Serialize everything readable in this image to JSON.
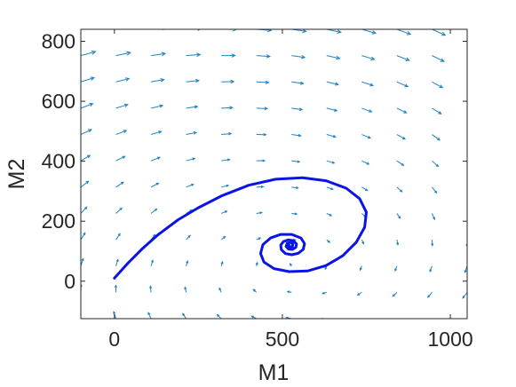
{
  "chart_data": {
    "type": "line",
    "subtype": "phase-portrait",
    "title": "",
    "xlabel": "M1",
    "ylabel": "M2",
    "xlim": [
      -100,
      1050
    ],
    "ylim": [
      -125,
      840
    ],
    "xticks": [
      0,
      500,
      1000
    ],
    "yticks": [
      0,
      200,
      400,
      600,
      800
    ],
    "grid": false,
    "legend": "none",
    "colors": {
      "trajectory": "#0a14e6",
      "quiver": "#1f83c0",
      "axes": "#262626"
    },
    "trajectory": {
      "start": [
        0,
        10
      ],
      "equilibrium": [
        520,
        120
      ],
      "points": [
        [
          0,
          10
        ],
        [
          40,
          60
        ],
        [
          80,
          105
        ],
        [
          130,
          155
        ],
        [
          190,
          205
        ],
        [
          250,
          245
        ],
        [
          320,
          285
        ],
        [
          400,
          320
        ],
        [
          480,
          340
        ],
        [
          560,
          345
        ],
        [
          630,
          335
        ],
        [
          690,
          310
        ],
        [
          730,
          275
        ],
        [
          750,
          230
        ],
        [
          745,
          180
        ],
        [
          720,
          130
        ],
        [
          680,
          85
        ],
        [
          630,
          52
        ],
        [
          575,
          34
        ],
        [
          520,
          32
        ],
        [
          475,
          42
        ],
        [
          445,
          64
        ],
        [
          435,
          92
        ],
        [
          442,
          122
        ],
        [
          465,
          144
        ],
        [
          495,
          156
        ],
        [
          528,
          156
        ],
        [
          555,
          144
        ],
        [
          566,
          125
        ],
        [
          562,
          106
        ],
        [
          547,
          93
        ],
        [
          528,
          88
        ],
        [
          509,
          92
        ],
        [
          497,
          105
        ],
        [
          495,
          120
        ],
        [
          503,
          132
        ],
        [
          518,
          138
        ],
        [
          533,
          135
        ],
        [
          542,
          124
        ],
        [
          540,
          113
        ],
        [
          530,
          106
        ],
        [
          518,
          107
        ],
        [
          511,
          116
        ],
        [
          514,
          126
        ],
        [
          523,
          130
        ],
        [
          531,
          125
        ],
        [
          530,
          116
        ],
        [
          522,
          113
        ],
        [
          517,
          119
        ],
        [
          520,
          120
        ]
      ]
    },
    "vector_field": {
      "x_range": [
        -100,
        1050
      ],
      "y_range": [
        -125,
        840
      ],
      "nx": 12,
      "ny": 12
    }
  }
}
